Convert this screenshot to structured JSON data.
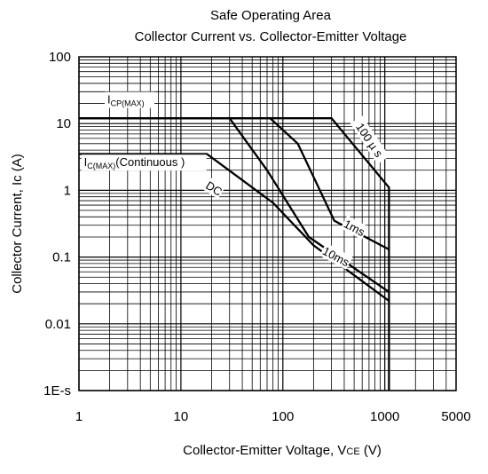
{
  "chart_data": {
    "type": "line",
    "title": "Safe Operating Area",
    "subtitle": "Collector Current vs. Collector-Emitter Voltage",
    "xlabel": "Collector-Emitter Voltage, VCE (V)",
    "xlabel_main": "Collector-Emitter Voltage, V",
    "xlabel_sub": "CE",
    "xlabel_unit": " (V)",
    "ylabel": "Collector Current, Ic (A)",
    "xscale": "log",
    "yscale": "log",
    "xlim": [
      1,
      5000
    ],
    "ylim": [
      0.001,
      100
    ],
    "grid": true,
    "x_ticks": [
      {
        "value": 1,
        "label": "1"
      },
      {
        "value": 10,
        "label": "10"
      },
      {
        "value": 100,
        "label": "100"
      },
      {
        "value": 1000,
        "label": "1000"
      },
      {
        "value": 5000,
        "label": "5000"
      }
    ],
    "y_ticks": [
      {
        "value": 100,
        "label": "100"
      },
      {
        "value": 10,
        "label": "10"
      },
      {
        "value": 1,
        "label": "1"
      },
      {
        "value": 0.1,
        "label": "0.1"
      },
      {
        "value": 0.01,
        "label": "0.01"
      },
      {
        "value": 0.001,
        "label": "1E-s"
      }
    ],
    "series": [
      {
        "name": "100 µs",
        "label_text": "100 µ s",
        "x": [
          1,
          300,
          1100,
          1100
        ],
        "y": [
          12,
          12,
          1.1,
          0.001
        ]
      },
      {
        "name": "1ms",
        "label_text": "1ms",
        "x": [
          1,
          75,
          140,
          320,
          1100
        ],
        "y": [
          12,
          12,
          5,
          0.35,
          0.13
        ]
      },
      {
        "name": "10ms",
        "label_text": "10ms",
        "x": [
          1,
          30,
          70,
          180,
          1100
        ],
        "y": [
          12,
          12,
          2,
          0.2,
          0.03
        ]
      },
      {
        "name": "DC",
        "label_text": "DC",
        "x": [
          1,
          18,
          80,
          200,
          1100
        ],
        "y": [
          3.5,
          3.5,
          0.65,
          0.15,
          0.022
        ]
      }
    ],
    "annotations": [
      {
        "id": "icp",
        "main": "I",
        "sub": "CP(MAX)",
        "suffix": "",
        "x": 1.9,
        "y": 20
      },
      {
        "id": "ic",
        "main": "I",
        "sub": "C(MAX)",
        "suffix": "(Continuous )",
        "x": 1.12,
        "y": 2.3
      }
    ]
  }
}
